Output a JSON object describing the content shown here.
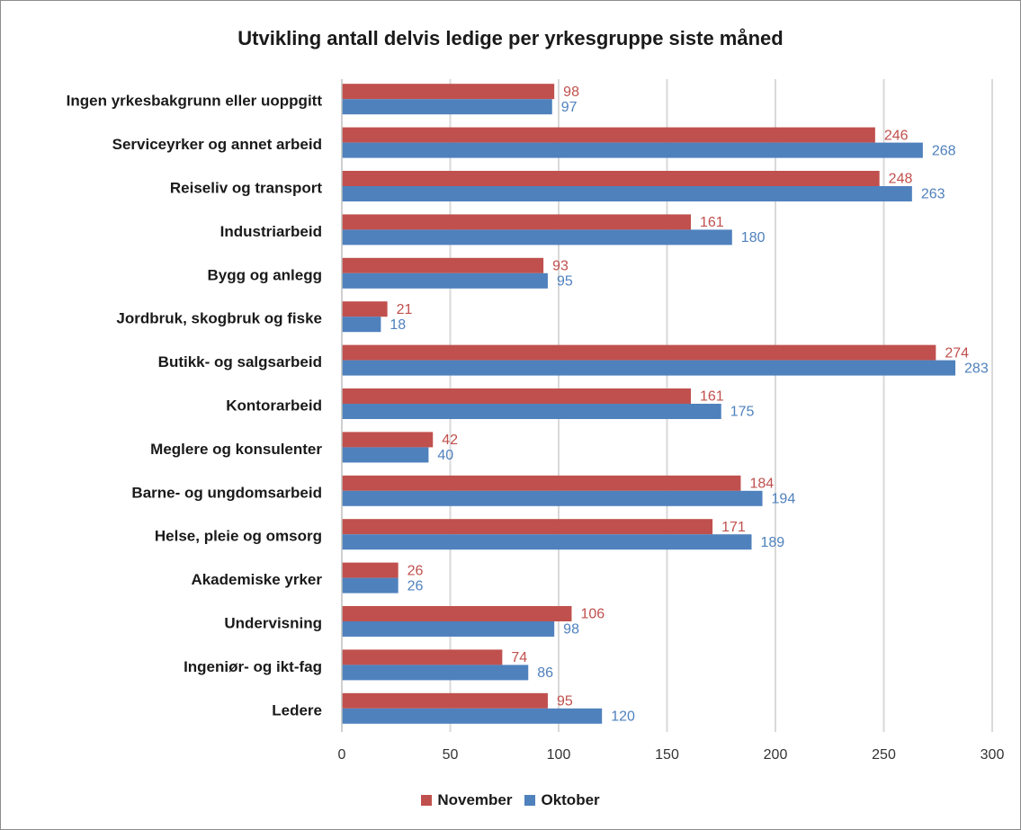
{
  "chart_data": {
    "type": "bar",
    "orientation": "horizontal",
    "title": "Utvikling antall delvis ledige per yrkesgruppe siste måned",
    "categories": [
      "Ingen yrkesbakgrunn eller uoppgitt",
      "Serviceyrker og annet arbeid",
      "Reiseliv og transport",
      "Industriarbeid",
      "Bygg og anlegg",
      "Jordbruk, skogbruk og fiske",
      "Butikk- og salgsarbeid",
      "Kontorarbeid",
      "Meglere og konsulenter",
      "Barne- og ungdomsarbeid",
      "Helse, pleie og omsorg",
      "Akademiske yrker",
      "Undervisning",
      "Ingeniør- og ikt-fag",
      "Ledere"
    ],
    "series": [
      {
        "name": "November",
        "color": "#c0504d",
        "values": [
          98,
          246,
          248,
          161,
          93,
          21,
          274,
          161,
          42,
          184,
          171,
          26,
          106,
          74,
          95
        ]
      },
      {
        "name": "Oktober",
        "color": "#4f81bd",
        "values": [
          97,
          268,
          263,
          180,
          95,
          18,
          283,
          175,
          40,
          194,
          189,
          26,
          98,
          86,
          120
        ]
      }
    ],
    "xlim": [
      0,
      300
    ],
    "xticks": [
      "0",
      "50",
      "100",
      "150",
      "200",
      "250",
      "300"
    ],
    "grid": true,
    "legend_position": "bottom",
    "data_labels": true
  }
}
